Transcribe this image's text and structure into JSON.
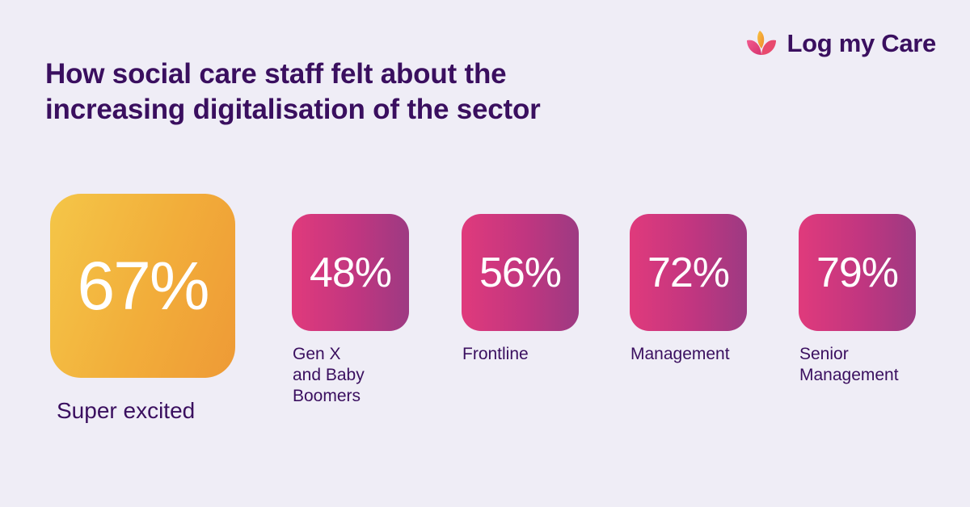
{
  "header": {
    "title": "How social care staff felt about the increasing digitalisation of the sector",
    "brand_name": "Log my Care",
    "logo_icon": "heart-petals-icon"
  },
  "colors": {
    "background": "#efedf6",
    "text": "#3a0f5f",
    "highlight_tile": "#f2ad3a",
    "group_tile": "#c03680"
  },
  "chart_data": {
    "type": "table",
    "title": "How social care staff felt about the increasing digitalisation of the sector",
    "highlight": {
      "label": "Super excited",
      "value": 67,
      "display": "67%"
    },
    "categories": [
      "Gen X\nand Baby\nBoomers",
      "Frontline",
      "Management",
      "Senior\nManagement"
    ],
    "values": [
      48,
      56,
      72,
      79
    ],
    "displays": [
      "48%",
      "56%",
      "72%",
      "79%"
    ],
    "unit": "%"
  }
}
